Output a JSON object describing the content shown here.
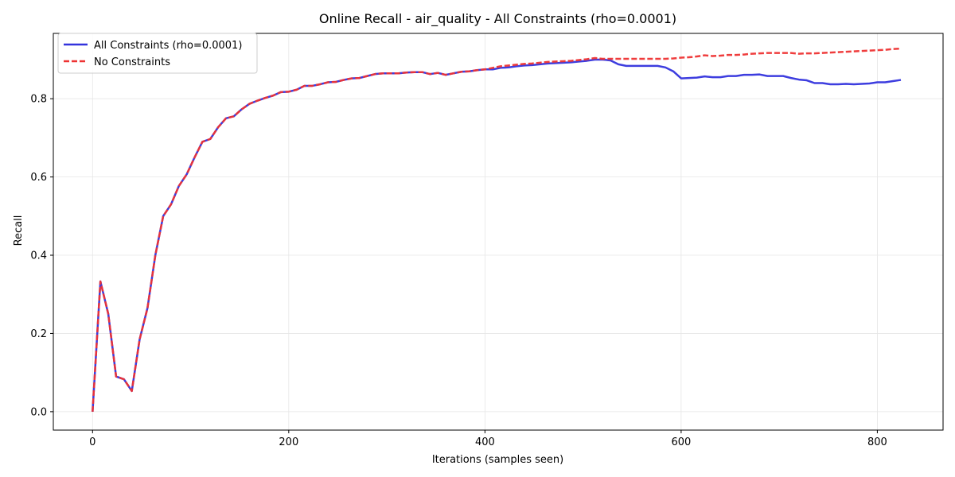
{
  "chart_data": {
    "type": "line",
    "title": "Online Recall - air_quality - All Constraints (rho=0.0001)",
    "xlabel": "Iterations (samples seen)",
    "ylabel": "Recall",
    "xlim": [
      -40,
      867
    ],
    "ylim": [
      -0.047,
      0.967
    ],
    "xticks": [
      0,
      200,
      400,
      600,
      800
    ],
    "xtick_labels": [
      "0",
      "200",
      "400",
      "600",
      "800"
    ],
    "yticks": [
      0.0,
      0.2,
      0.4,
      0.6,
      0.8
    ],
    "ytick_labels": [
      "0.0",
      "0.2",
      "0.4",
      "0.6",
      "0.8"
    ],
    "grid": true,
    "legend_position": "top-left",
    "series": [
      {
        "name": "All Constraints (rho=0.0001)",
        "color": "#3333dd",
        "style": "solid",
        "points": [
          [
            0,
            0.0
          ],
          [
            8,
            0.333
          ],
          [
            16,
            0.25
          ],
          [
            24,
            0.09
          ],
          [
            32,
            0.083
          ],
          [
            40,
            0.053
          ],
          [
            48,
            0.185
          ],
          [
            56,
            0.265
          ],
          [
            64,
            0.4
          ],
          [
            72,
            0.5
          ],
          [
            80,
            0.53
          ],
          [
            88,
            0.577
          ],
          [
            96,
            0.607
          ],
          [
            104,
            0.65
          ],
          [
            112,
            0.69
          ],
          [
            120,
            0.697
          ],
          [
            128,
            0.727
          ],
          [
            136,
            0.75
          ],
          [
            144,
            0.755
          ],
          [
            152,
            0.773
          ],
          [
            160,
            0.787
          ],
          [
            168,
            0.795
          ],
          [
            176,
            0.802
          ],
          [
            184,
            0.808
          ],
          [
            192,
            0.817
          ],
          [
            200,
            0.818
          ],
          [
            208,
            0.823
          ],
          [
            216,
            0.833
          ],
          [
            224,
            0.833
          ],
          [
            232,
            0.837
          ],
          [
            240,
            0.842
          ],
          [
            248,
            0.843
          ],
          [
            256,
            0.848
          ],
          [
            264,
            0.852
          ],
          [
            272,
            0.853
          ],
          [
            280,
            0.858
          ],
          [
            288,
            0.863
          ],
          [
            296,
            0.865
          ],
          [
            304,
            0.865
          ],
          [
            312,
            0.865
          ],
          [
            320,
            0.867
          ],
          [
            328,
            0.868
          ],
          [
            336,
            0.868
          ],
          [
            344,
            0.863
          ],
          [
            352,
            0.866
          ],
          [
            360,
            0.861
          ],
          [
            368,
            0.865
          ],
          [
            376,
            0.869
          ],
          [
            384,
            0.87
          ],
          [
            392,
            0.873
          ],
          [
            400,
            0.875
          ],
          [
            408,
            0.875
          ],
          [
            416,
            0.879
          ],
          [
            424,
            0.88
          ],
          [
            432,
            0.883
          ],
          [
            440,
            0.885
          ],
          [
            448,
            0.886
          ],
          [
            456,
            0.888
          ],
          [
            464,
            0.89
          ],
          [
            472,
            0.891
          ],
          [
            480,
            0.892
          ],
          [
            488,
            0.893
          ],
          [
            496,
            0.895
          ],
          [
            504,
            0.897
          ],
          [
            512,
            0.9
          ],
          [
            520,
            0.9
          ],
          [
            528,
            0.898
          ],
          [
            536,
            0.888
          ],
          [
            544,
            0.884
          ],
          [
            552,
            0.884
          ],
          [
            560,
            0.884
          ],
          [
            568,
            0.884
          ],
          [
            576,
            0.884
          ],
          [
            584,
            0.88
          ],
          [
            592,
            0.87
          ],
          [
            600,
            0.852
          ],
          [
            608,
            0.853
          ],
          [
            616,
            0.854
          ],
          [
            624,
            0.857
          ],
          [
            632,
            0.855
          ],
          [
            640,
            0.855
          ],
          [
            648,
            0.858
          ],
          [
            656,
            0.858
          ],
          [
            664,
            0.861
          ],
          [
            672,
            0.861
          ],
          [
            680,
            0.862
          ],
          [
            688,
            0.858
          ],
          [
            696,
            0.858
          ],
          [
            704,
            0.858
          ],
          [
            712,
            0.853
          ],
          [
            720,
            0.849
          ],
          [
            728,
            0.847
          ],
          [
            736,
            0.84
          ],
          [
            744,
            0.84
          ],
          [
            752,
            0.837
          ],
          [
            760,
            0.837
          ],
          [
            768,
            0.838
          ],
          [
            776,
            0.837
          ],
          [
            784,
            0.838
          ],
          [
            792,
            0.839
          ],
          [
            800,
            0.842
          ],
          [
            808,
            0.842
          ],
          [
            816,
            0.845
          ],
          [
            824,
            0.848
          ]
        ]
      },
      {
        "name": "No Constraints",
        "color": "#ee3333",
        "style": "dashed",
        "points": [
          [
            0,
            0.0
          ],
          [
            8,
            0.333
          ],
          [
            16,
            0.25
          ],
          [
            24,
            0.09
          ],
          [
            32,
            0.083
          ],
          [
            40,
            0.053
          ],
          [
            48,
            0.185
          ],
          [
            56,
            0.265
          ],
          [
            64,
            0.4
          ],
          [
            72,
            0.5
          ],
          [
            80,
            0.53
          ],
          [
            88,
            0.577
          ],
          [
            96,
            0.607
          ],
          [
            104,
            0.65
          ],
          [
            112,
            0.69
          ],
          [
            120,
            0.697
          ],
          [
            128,
            0.727
          ],
          [
            136,
            0.75
          ],
          [
            144,
            0.755
          ],
          [
            152,
            0.773
          ],
          [
            160,
            0.787
          ],
          [
            168,
            0.795
          ],
          [
            176,
            0.802
          ],
          [
            184,
            0.808
          ],
          [
            192,
            0.817
          ],
          [
            200,
            0.818
          ],
          [
            208,
            0.823
          ],
          [
            216,
            0.833
          ],
          [
            224,
            0.833
          ],
          [
            232,
            0.837
          ],
          [
            240,
            0.842
          ],
          [
            248,
            0.843
          ],
          [
            256,
            0.848
          ],
          [
            264,
            0.852
          ],
          [
            272,
            0.853
          ],
          [
            280,
            0.858
          ],
          [
            288,
            0.863
          ],
          [
            296,
            0.865
          ],
          [
            304,
            0.865
          ],
          [
            312,
            0.865
          ],
          [
            320,
            0.867
          ],
          [
            328,
            0.868
          ],
          [
            336,
            0.868
          ],
          [
            344,
            0.863
          ],
          [
            352,
            0.866
          ],
          [
            360,
            0.861
          ],
          [
            368,
            0.865
          ],
          [
            376,
            0.869
          ],
          [
            384,
            0.87
          ],
          [
            392,
            0.873
          ],
          [
            400,
            0.875
          ],
          [
            408,
            0.879
          ],
          [
            416,
            0.883
          ],
          [
            424,
            0.885
          ],
          [
            432,
            0.887
          ],
          [
            440,
            0.889
          ],
          [
            448,
            0.89
          ],
          [
            456,
            0.892
          ],
          [
            464,
            0.894
          ],
          [
            472,
            0.895
          ],
          [
            480,
            0.896
          ],
          [
            488,
            0.897
          ],
          [
            496,
            0.899
          ],
          [
            504,
            0.901
          ],
          [
            512,
            0.904
          ],
          [
            520,
            0.902
          ],
          [
            528,
            0.902
          ],
          [
            536,
            0.902
          ],
          [
            544,
            0.902
          ],
          [
            552,
            0.902
          ],
          [
            560,
            0.902
          ],
          [
            568,
            0.902
          ],
          [
            576,
            0.902
          ],
          [
            584,
            0.902
          ],
          [
            592,
            0.903
          ],
          [
            600,
            0.905
          ],
          [
            608,
            0.906
          ],
          [
            616,
            0.908
          ],
          [
            624,
            0.911
          ],
          [
            632,
            0.909
          ],
          [
            640,
            0.91
          ],
          [
            648,
            0.912
          ],
          [
            656,
            0.912
          ],
          [
            664,
            0.913
          ],
          [
            672,
            0.915
          ],
          [
            680,
            0.916
          ],
          [
            688,
            0.917
          ],
          [
            696,
            0.917
          ],
          [
            704,
            0.917
          ],
          [
            712,
            0.917
          ],
          [
            720,
            0.915
          ],
          [
            728,
            0.916
          ],
          [
            736,
            0.916
          ],
          [
            744,
            0.917
          ],
          [
            752,
            0.918
          ],
          [
            760,
            0.919
          ],
          [
            768,
            0.92
          ],
          [
            776,
            0.921
          ],
          [
            784,
            0.922
          ],
          [
            792,
            0.923
          ],
          [
            800,
            0.924
          ],
          [
            808,
            0.925
          ],
          [
            816,
            0.927
          ],
          [
            824,
            0.928
          ]
        ]
      }
    ]
  }
}
